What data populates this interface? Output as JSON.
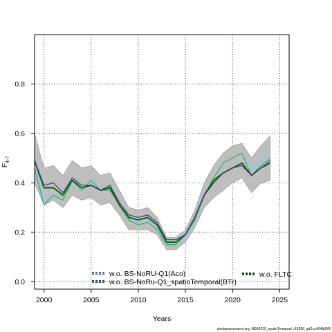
{
  "chart_data": {
    "type": "line",
    "title": "",
    "xlabel": "Years",
    "ylabel_main": "F",
    "ylabel_sub": "4-7",
    "xlim": [
      1999,
      2026
    ],
    "ylim": [
      -0.03,
      1.0
    ],
    "xticks": [
      2000,
      2005,
      2010,
      2015,
      2020,
      2025
    ],
    "yticks": [
      0.0,
      0.2,
      0.4,
      0.6,
      0.8
    ],
    "ytick_labels": [
      "0.0",
      "0.2",
      "0.4",
      "0.6",
      "0.8"
    ],
    "grid": true,
    "legend_position": "bottom",
    "x": [
      1999,
      2000,
      2001,
      2002,
      2003,
      2004,
      2005,
      2006,
      2007,
      2008,
      2009,
      2010,
      2011,
      2012,
      2013,
      2014,
      2015,
      2016,
      2017,
      2018,
      2019,
      2020,
      2021,
      2022,
      2023,
      2024
    ],
    "band": {
      "color": "#bebebe",
      "upper": [
        0.6,
        0.46,
        0.47,
        0.43,
        0.49,
        0.46,
        0.47,
        0.43,
        0.44,
        0.37,
        0.3,
        0.29,
        0.3,
        0.26,
        0.18,
        0.18,
        0.21,
        0.29,
        0.4,
        0.47,
        0.52,
        0.55,
        0.56,
        0.5,
        0.55,
        0.59
      ],
      "lower": [
        0.4,
        0.31,
        0.33,
        0.3,
        0.35,
        0.33,
        0.34,
        0.31,
        0.32,
        0.27,
        0.21,
        0.21,
        0.21,
        0.19,
        0.13,
        0.13,
        0.16,
        0.22,
        0.3,
        0.34,
        0.37,
        0.4,
        0.42,
        0.36,
        0.4,
        0.41
      ]
    },
    "series": [
      {
        "name": "w.o. BS-NoRU-Q1(Aco)",
        "color": "#87cefa",
        "width": 1.3,
        "dash": "",
        "values": [
          0.51,
          0.32,
          0.35,
          0.34,
          0.4,
          0.38,
          0.4,
          0.37,
          0.38,
          0.31,
          0.25,
          0.24,
          0.25,
          0.22,
          0.15,
          0.15,
          0.18,
          0.25,
          0.35,
          0.42,
          0.48,
          0.5,
          0.52,
          0.45,
          0.49,
          0.52
        ]
      },
      {
        "name": "w.o. BS-NoRu-Q1_spatioTemporal(BTr)",
        "color": "#3cb371",
        "width": 1.3,
        "dash": "",
        "values": [
          0.46,
          0.31,
          0.35,
          0.33,
          0.41,
          0.37,
          0.41,
          0.37,
          0.37,
          0.31,
          0.25,
          0.23,
          0.24,
          0.21,
          0.15,
          0.15,
          0.19,
          0.25,
          0.35,
          0.42,
          0.48,
          0.5,
          0.52,
          0.43,
          0.47,
          0.5
        ]
      },
      {
        "name": "w.o. FLTC",
        "color": "#006400",
        "width": 1.9,
        "dash": "",
        "values": [
          0.49,
          0.38,
          0.38,
          0.35,
          0.41,
          0.38,
          0.39,
          0.37,
          0.38,
          0.31,
          0.26,
          0.25,
          0.26,
          0.23,
          0.16,
          0.16,
          0.19,
          0.26,
          0.35,
          0.41,
          0.44,
          0.46,
          0.48,
          0.43,
          0.46,
          0.48
        ]
      },
      {
        "name": "",
        "color": "#483d8b",
        "width": 1.3,
        "dash": "",
        "values": [
          0.49,
          0.39,
          0.4,
          0.36,
          0.42,
          0.39,
          0.39,
          0.37,
          0.39,
          0.32,
          0.27,
          0.26,
          0.27,
          0.24,
          0.17,
          0.17,
          0.19,
          0.26,
          0.35,
          0.4,
          0.44,
          0.46,
          0.47,
          0.43,
          0.46,
          0.49
        ]
      }
    ],
    "legend": [
      {
        "label": "w.o. BS-NoRU-Q1(Aco)",
        "color": "#87cefa",
        "dash": "3,2"
      },
      {
        "label": "w.o. BS-NoRu-Q1_spatioTemporal(BTr)",
        "color": "#3cb371",
        "dash": "3,2"
      },
      {
        "label": "w.o. FLTC",
        "color": "#006400",
        "dash": "3,2"
      }
    ]
  },
  "caption": "stockassessment.org, NEA2025_spatioTemporal, r19256, git:1cc464b806f"
}
